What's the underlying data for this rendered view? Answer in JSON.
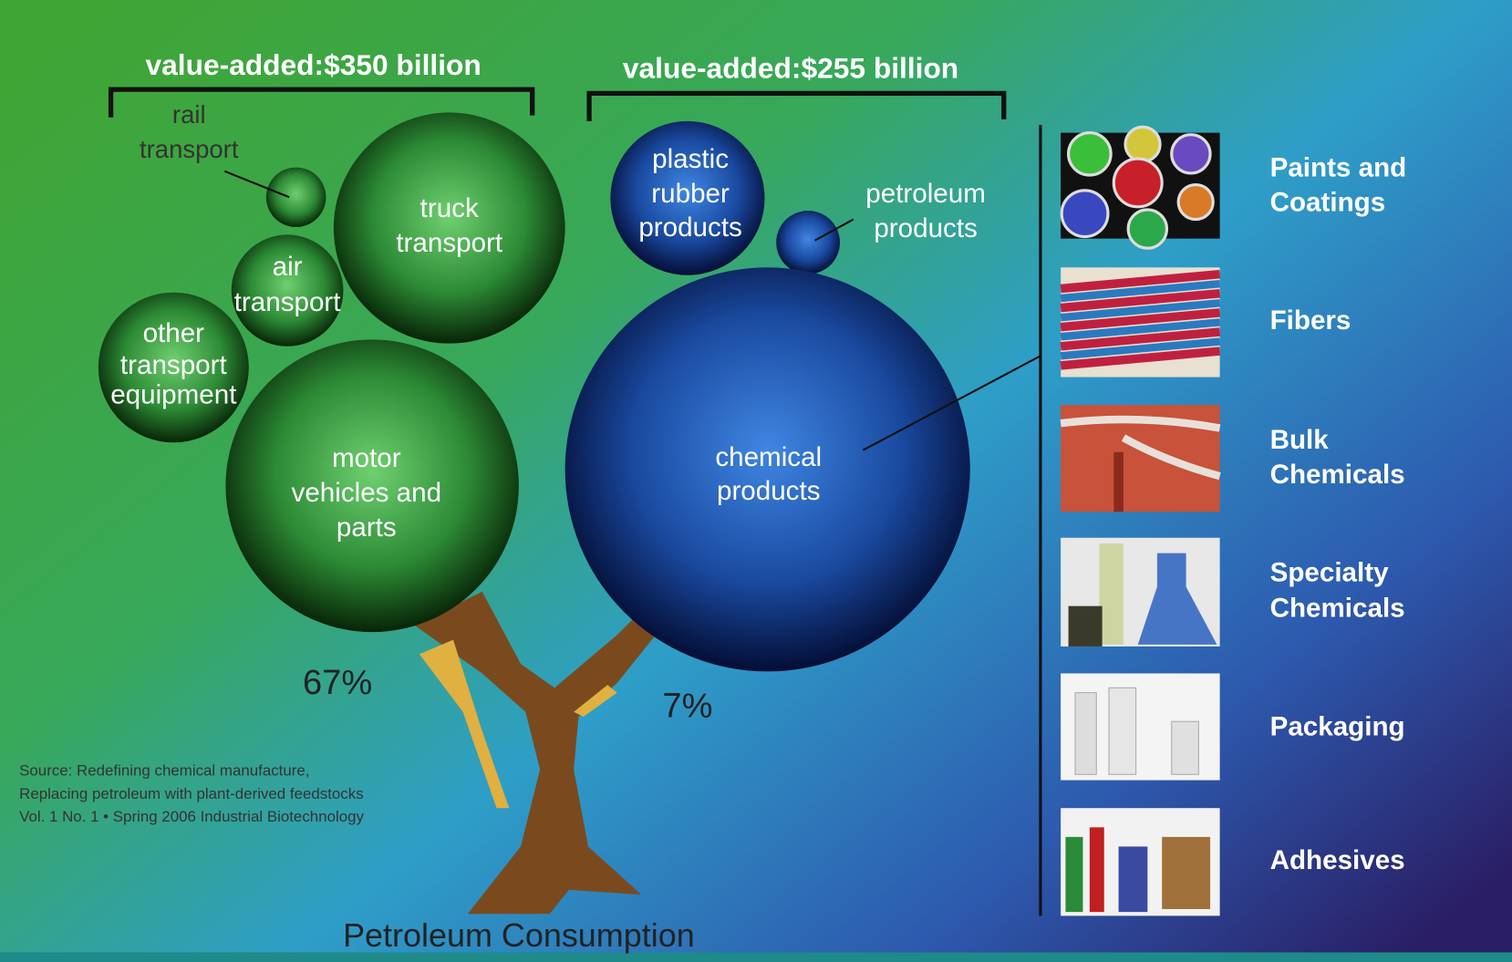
{
  "groups": [
    {
      "title": "value-added:$350 billion",
      "bubbles": [
        [
          "rail",
          "transport"
        ],
        [
          "truck",
          "transport"
        ],
        [
          "air",
          "transport"
        ],
        [
          "other",
          "transport",
          "equipment"
        ],
        [
          "motor",
          "vehicles and",
          "parts"
        ]
      ],
      "share": "67%"
    },
    {
      "title": "value-added:$255 billion",
      "bubbles": [
        [
          "plastic",
          "rubber",
          "products"
        ],
        [
          "petroleum",
          "products"
        ],
        [
          "chemical",
          "products"
        ]
      ],
      "share": "7%"
    }
  ],
  "applications": [
    [
      "Paints and",
      "Coatings"
    ],
    [
      "Fibers"
    ],
    [
      "Bulk",
      "Chemicals"
    ],
    [
      "Specialty",
      "Chemicals"
    ],
    [
      "Packaging"
    ],
    [
      "Adhesives"
    ]
  ],
  "source": [
    "Source: Redefining chemical manufacture,",
    "Replacing petroleum with plant-derived feedstocks",
    "Vol. 1 No. 1 • Spring 2006 Industrial Biotechnology"
  ],
  "footer": "Petroleum Consumption"
}
